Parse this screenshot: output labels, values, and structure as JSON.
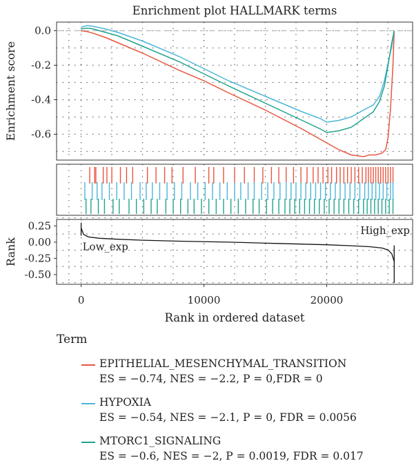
{
  "chart_data": {
    "type": "line",
    "title": "Enrichment plot HALLMARK terms",
    "xlabel": "Rank in ordered dataset",
    "ylabel_top": "Enrichment score",
    "ylabel_bottom": "Rank",
    "xlim": [
      -2000,
      27000
    ],
    "x_ticks": [
      0,
      10000,
      20000
    ],
    "x_tick_labels": [
      "0",
      "10000",
      "20000"
    ],
    "es_ylim": [
      -0.75,
      0.05
    ],
    "es_ticks": [
      0.0,
      -0.2,
      -0.4,
      -0.6
    ],
    "es_tick_labels": [
      "0.0",
      "-0.2",
      "-0.4",
      "-0.6"
    ],
    "rank_ylim": [
      -0.65,
      0.35
    ],
    "rank_ticks": [
      0.25,
      0.0,
      -0.25,
      -0.5
    ],
    "rank_tick_labels": [
      "0.25",
      "0.00",
      "-0.25",
      "-0.50"
    ],
    "grid": true,
    "zero_line": "dashed",
    "rank_annotations": [
      {
        "text": "Low_exp",
        "x": 0,
        "y": -0.07
      },
      {
        "text": "High_exp",
        "x": 25500,
        "y": 0.18
      }
    ],
    "rank_metric": {
      "x": [
        0,
        200,
        600,
        1500,
        3000,
        5000,
        8000,
        12000,
        16000,
        20000,
        22000,
        23500,
        24500,
        25000,
        25300,
        25500
      ],
      "y": [
        0.22,
        0.12,
        0.08,
        0.06,
        0.045,
        0.03,
        0.015,
        0.0,
        -0.02,
        -0.04,
        -0.055,
        -0.07,
        -0.09,
        -0.12,
        -0.18,
        -0.3
      ]
    },
    "legend_title": "Term",
    "legend_placement": "bottom",
    "series": [
      {
        "name": "EPITHELIAL_MESENCHYMAL_TRANSITION",
        "stats": "ES = −0.74, NES = −2.2, P = 0,FDR = 0",
        "color": "#e8553e",
        "x": [
          0,
          500,
          1000,
          2000,
          3000,
          5000,
          8000,
          10000,
          12000,
          15000,
          18000,
          20000,
          21000,
          22000,
          23000,
          23500,
          24000,
          24500,
          24800,
          25000,
          25200,
          25400,
          25500
        ],
        "y": [
          0.0,
          -0.005,
          -0.015,
          -0.04,
          -0.07,
          -0.13,
          -0.23,
          -0.29,
          -0.36,
          -0.46,
          -0.57,
          -0.65,
          -0.69,
          -0.72,
          -0.73,
          -0.72,
          -0.72,
          -0.71,
          -0.69,
          -0.62,
          -0.45,
          -0.2,
          0.0
        ],
        "hits": [
          700,
          1100,
          1200,
          1800,
          2100,
          2500,
          3200,
          3700,
          4200,
          5400,
          6100,
          6800,
          7400,
          8300,
          9300,
          10400,
          10800,
          11600,
          12500,
          13300,
          14100,
          14800,
          15500,
          16100,
          16700,
          17300,
          17900,
          18400,
          18900,
          19300,
          19700,
          20100,
          20400,
          20800,
          21100,
          21400,
          21700,
          22000,
          22300,
          22600,
          22900,
          23200,
          23400,
          23600,
          23800,
          24000,
          24200,
          24400,
          24600,
          24800,
          25000,
          25200,
          25400
        ]
      },
      {
        "name": "HYPOXIA",
        "stats": "ES = −0.54, NES = −2.1, P = 0, FDR = 0.0056",
        "color": "#4ab6d8",
        "x": [
          0,
          500,
          1000,
          2000,
          3000,
          5000,
          8000,
          10000,
          12000,
          15000,
          18000,
          19500,
          20000,
          21000,
          22000,
          23000,
          23800,
          24300,
          24700,
          25000,
          25300,
          25500
        ],
        "y": [
          0.02,
          0.03,
          0.025,
          0.01,
          -0.01,
          -0.06,
          -0.15,
          -0.22,
          -0.29,
          -0.38,
          -0.47,
          -0.51,
          -0.53,
          -0.52,
          -0.5,
          -0.46,
          -0.43,
          -0.38,
          -0.29,
          -0.19,
          -0.09,
          0.0
        ],
        "hits": [
          300,
          900,
          1300,
          1700,
          2300,
          2900,
          3500,
          4100,
          4800,
          5300,
          5800,
          6400,
          7000,
          7600,
          8200,
          8900,
          9500,
          10100,
          10700,
          11300,
          11900,
          12500,
          13000,
          13600,
          14100,
          14700,
          15200,
          15700,
          16200,
          16700,
          17100,
          17500,
          17900,
          18300,
          18700,
          19100,
          19500,
          19900,
          20300,
          20700,
          21100,
          21500,
          21900,
          22300,
          22700,
          23100,
          23400,
          23700,
          24000,
          24300,
          24600,
          24900,
          25200,
          25400
        ]
      },
      {
        "name": "MTORC1_SIGNALING",
        "stats": "ES = −0.6, NES = −2, P = 0.0019, FDR = 0.017",
        "color": "#1fa38c",
        "x": [
          0,
          500,
          1000,
          2000,
          3000,
          5000,
          8000,
          10000,
          12000,
          15000,
          18000,
          19500,
          20000,
          21000,
          22000,
          23000,
          23800,
          24300,
          24700,
          25000,
          25300,
          25500
        ],
        "y": [
          0.01,
          0.015,
          0.01,
          -0.01,
          -0.03,
          -0.09,
          -0.18,
          -0.25,
          -0.32,
          -0.42,
          -0.52,
          -0.57,
          -0.59,
          -0.58,
          -0.56,
          -0.51,
          -0.47,
          -0.41,
          -0.32,
          -0.2,
          -0.07,
          0.0
        ],
        "hits": [
          400,
          800,
          1400,
          1900,
          2600,
          3100,
          3900,
          4500,
          5100,
          5700,
          6200,
          6900,
          7500,
          8100,
          8700,
          9200,
          9800,
          10400,
          11000,
          11600,
          12200,
          12800,
          13400,
          14000,
          14500,
          15100,
          15600,
          16100,
          16600,
          17000,
          17400,
          17800,
          18200,
          18600,
          19000,
          19400,
          19800,
          20200,
          20600,
          21000,
          21400,
          21800,
          22200,
          22600,
          23000,
          23300,
          23600,
          23900,
          24200,
          24500,
          24800,
          25100,
          25400
        ]
      }
    ]
  }
}
